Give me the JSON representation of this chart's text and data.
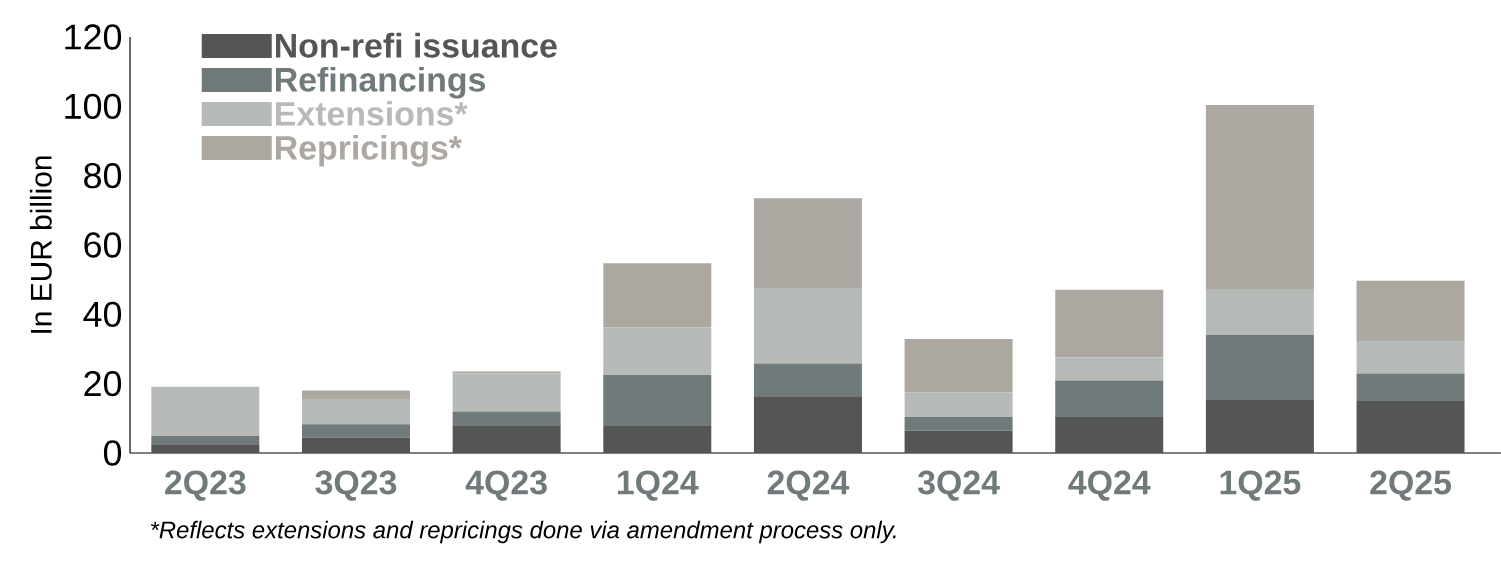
{
  "chart_data": {
    "type": "bar",
    "stacked": true,
    "ylabel": "In EUR billion",
    "categories": [
      "2Q23",
      "3Q23",
      "4Q23",
      "1Q24",
      "2Q24",
      "3Q24",
      "4Q24",
      "1Q25",
      "2Q25"
    ],
    "series": [
      {
        "name": "Non-refi issuance",
        "color": "#545655",
        "values": [
          2.3,
          4.4,
          8.0,
          8.0,
          16.4,
          6.4,
          10.4,
          15.3,
          15.0
        ]
      },
      {
        "name": "Refinancings",
        "color": "#717a7b",
        "values": [
          2.6,
          3.9,
          4.0,
          14.5,
          9.4,
          4.0,
          10.5,
          18.8,
          7.9
        ]
      },
      {
        "name": "Extensions*",
        "color": "#b7bbb7",
        "values": [
          14.2,
          7.3,
          10.9,
          13.7,
          21.8,
          7.1,
          6.7,
          13.2,
          9.4
        ]
      },
      {
        "name": "Repricings*",
        "color": "#aca7a0",
        "values": [
          0,
          2.4,
          0.6,
          18.5,
          25.9,
          15.4,
          19.5,
          53.1,
          17.4
        ]
      }
    ],
    "ylim": [
      0,
      120
    ],
    "yticks": [
      0,
      20,
      40,
      60,
      80,
      100,
      120
    ],
    "legend": "top left",
    "grid": false,
    "annotations": [
      "*Reflects extensions and repricings done via amendment process only."
    ]
  }
}
